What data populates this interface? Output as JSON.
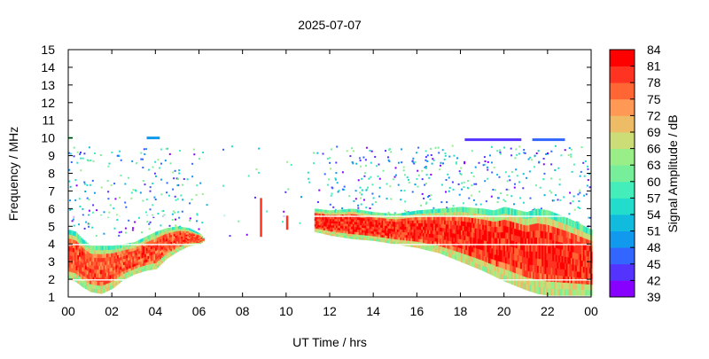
{
  "chart_data": {
    "type": "heatmap",
    "title": "2025-07-07",
    "xlabel": "UT Time / hrs",
    "ylabel": "Frequency / MHz",
    "colorbar_label": "Signal Amplitude / dB",
    "xlim": [
      0,
      24
    ],
    "ylim": [
      1,
      15
    ],
    "x_ticks": [
      "00",
      "02",
      "04",
      "06",
      "08",
      "10",
      "12",
      "14",
      "16",
      "18",
      "20",
      "22",
      "00"
    ],
    "y_ticks": [
      "1",
      "2",
      "3",
      "4",
      "5",
      "6",
      "7",
      "8",
      "9",
      "10",
      "11",
      "12",
      "13",
      "14",
      "15"
    ],
    "colorbar": {
      "range": [
        39,
        84
      ],
      "ticks": [
        "39",
        "42",
        "45",
        "48",
        "51",
        "54",
        "57",
        "60",
        "63",
        "66",
        "69",
        "72",
        "75",
        "78",
        "81",
        "84"
      ],
      "colors": [
        "#8800ff",
        "#5533ff",
        "#3366ff",
        "#1199ee",
        "#11bbdd",
        "#22ddcc",
        "#44eebb",
        "#77ee99",
        "#99ee88",
        "#ccdd77",
        "#eebb66",
        "#ff9955",
        "#ff6633",
        "#ff3322",
        "#ff0000"
      ]
    },
    "regions": [
      {
        "name": "night-layer-early",
        "amplitude": 78,
        "t": [
          0.0,
          0.3,
          0.6,
          1.0,
          1.5,
          2.0,
          2.5,
          3.0,
          3.5,
          4.0,
          4.5,
          5.0,
          5.5,
          6.0,
          6.2
        ],
        "fmin": [
          2.0,
          1.9,
          1.6,
          1.3,
          1.2,
          1.5,
          2.0,
          2.3,
          2.5,
          2.6,
          3.2,
          3.6,
          3.9,
          4.0,
          4.2
        ],
        "fmax": [
          4.8,
          4.7,
          4.3,
          3.9,
          3.9,
          3.9,
          4.0,
          4.1,
          4.4,
          4.7,
          4.9,
          5.0,
          4.9,
          4.6,
          4.3
        ]
      },
      {
        "name": "night-layer-late",
        "amplitude": 80,
        "t": [
          11.3,
          12.0,
          13.0,
          14.0,
          15.0,
          16.0,
          17.0,
          18.0,
          19.0,
          19.5,
          20.0,
          21.0,
          21.5,
          22.0,
          23.0,
          24.0
        ],
        "fmin": [
          4.7,
          4.5,
          4.3,
          4.2,
          4.0,
          3.8,
          3.5,
          3.0,
          2.5,
          2.2,
          1.9,
          1.4,
          1.2,
          1.1,
          1.1,
          1.1
        ],
        "fmax": [
          6.0,
          5.9,
          6.0,
          5.8,
          5.7,
          5.9,
          6.0,
          6.1,
          6.0,
          5.9,
          6.1,
          5.8,
          6.0,
          5.9,
          5.4,
          4.8
        ]
      }
    ],
    "noise_band": {
      "fmin": 4.5,
      "fmax": 9.6
    },
    "top_bars": [
      {
        "t": [
          0.0,
          0.2
        ],
        "f": 10.0,
        "amplitude": 60
      },
      {
        "t": [
          3.6,
          4.2
        ],
        "f": 10.0,
        "amplitude": 48
      },
      {
        "t": [
          18.2,
          20.8
        ],
        "f": 9.9,
        "amplitude": 42
      },
      {
        "t": [
          21.3,
          22.8
        ],
        "f": 9.9,
        "amplitude": 45
      }
    ],
    "spikes": [
      {
        "t": 8.8,
        "fmin": 4.4,
        "fmax": 6.6,
        "amplitude": 80
      },
      {
        "t": 10.0,
        "fmin": 4.8,
        "fmax": 5.6,
        "amplitude": 78
      }
    ],
    "grid": false,
    "legend": "colorbar-right"
  }
}
